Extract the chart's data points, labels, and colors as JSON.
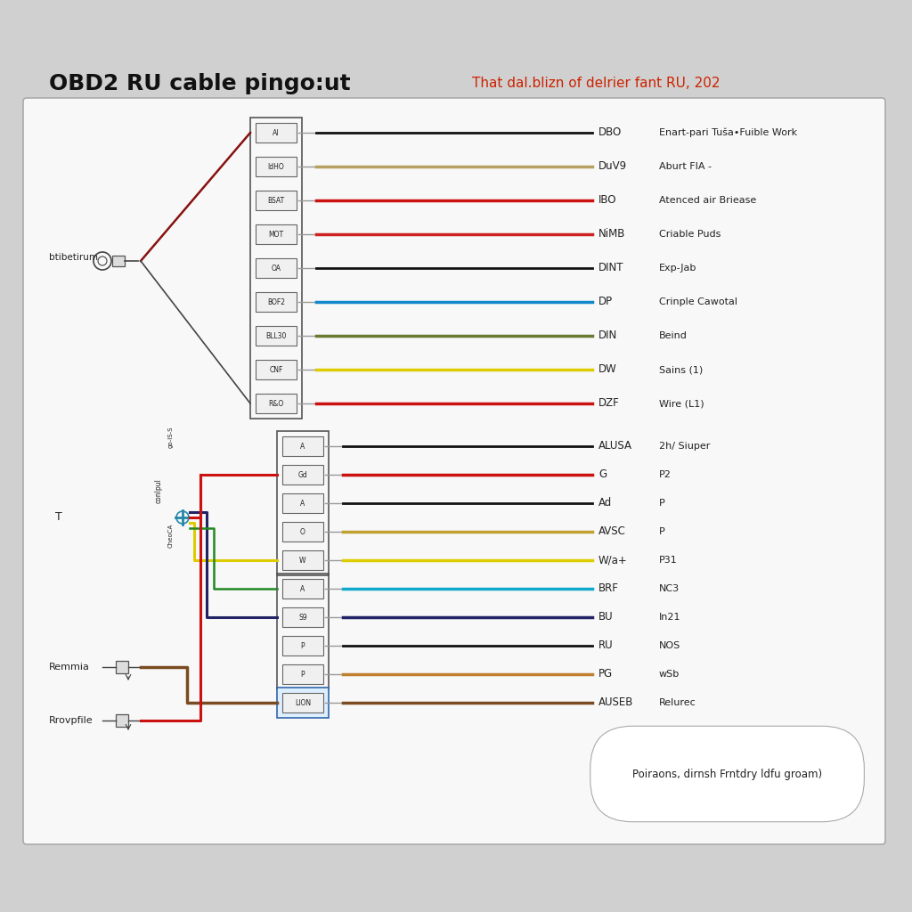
{
  "title": "OBD2 RU cable pingo:ut",
  "subtitle": "That dal.blizn of delrier fant RU, 202",
  "subtitle_color": "#cc2200",
  "pins_top": [
    {
      "label": "AI",
      "signal": "DBO",
      "desc": "Enart-pari Tuša•Fuible Work",
      "color": "#111111"
    },
    {
      "label": "IdHO",
      "signal": "DuV9",
      "desc": "Aburt FIA -",
      "color": "#b8a060"
    },
    {
      "label": "BSAT",
      "signal": "IBO",
      "desc": "Atenced air Briease",
      "color": "#cc1111"
    },
    {
      "label": "MOT",
      "signal": "NiMB",
      "desc": "Criable Puds",
      "color": "#cc2222"
    },
    {
      "label": "OA",
      "signal": "DINT",
      "desc": "Exp-Jab",
      "color": "#111111"
    },
    {
      "label": "BOF2",
      "signal": "DP",
      "desc": "Crinple Cawotal",
      "color": "#1188cc"
    },
    {
      "label": "BLL30",
      "signal": "DIN",
      "desc": "Beind",
      "color": "#6a7a30"
    },
    {
      "label": "CNF",
      "signal": "DW",
      "desc": "Sains (1)",
      "color": "#ddcc00"
    },
    {
      "label": "R&O",
      "signal": "DZF",
      "desc": "Wire (L1)",
      "color": "#cc1111"
    }
  ],
  "pins_bottom": [
    {
      "label": "A",
      "signal": "ALUSA",
      "desc": "2h/ Siuper",
      "color": "#111111"
    },
    {
      "label": "Gd",
      "signal": "G",
      "desc": "P2",
      "color": "#cc1111"
    },
    {
      "label": "A",
      "signal": "Ad",
      "desc": "P",
      "color": "#111111"
    },
    {
      "label": "O",
      "signal": "AVSC",
      "desc": "P",
      "color": "#c0a030"
    },
    {
      "label": "W",
      "signal": "W/a+",
      "desc": "P31",
      "color": "#ddcc00"
    },
    {
      "label": "A",
      "signal": "BRF",
      "desc": "NC3",
      "color": "#11aacc"
    },
    {
      "label": "S9",
      "signal": "BU",
      "desc": "In21",
      "color": "#222266"
    },
    {
      "label": "P",
      "signal": "RU",
      "desc": "NOS",
      "color": "#111111"
    },
    {
      "label": "P",
      "signal": "PG",
      "desc": "wSb",
      "color": "#c08030"
    },
    {
      "label": "LION",
      "signal": "AUSEB",
      "desc": "Relurec",
      "color": "#7a4a20"
    }
  ],
  "footnote": "Poiraons, dirnsh Frntdry ldfu groam)"
}
